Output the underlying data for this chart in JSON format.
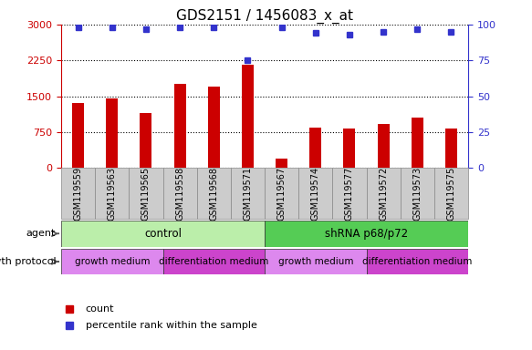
{
  "title": "GDS2151 / 1456083_x_at",
  "samples": [
    "GSM119559",
    "GSM119563",
    "GSM119565",
    "GSM119558",
    "GSM119568",
    "GSM119571",
    "GSM119567",
    "GSM119574",
    "GSM119577",
    "GSM119572",
    "GSM119573",
    "GSM119575"
  ],
  "counts": [
    1350,
    1450,
    1150,
    1750,
    1700,
    2150,
    200,
    850,
    820,
    930,
    1050,
    820
  ],
  "percentiles": [
    98,
    98,
    97,
    98,
    98,
    75,
    98,
    94,
    93,
    95,
    97,
    95
  ],
  "bar_color": "#cc0000",
  "dot_color": "#3333cc",
  "ylim_left": [
    0,
    3000
  ],
  "ylim_right": [
    0,
    100
  ],
  "yticks_left": [
    0,
    750,
    1500,
    2250,
    3000
  ],
  "yticks_right": [
    0,
    25,
    50,
    75,
    100
  ],
  "agent_groups": [
    {
      "label": "control",
      "start": 0,
      "end": 6,
      "color": "#bbeeaa"
    },
    {
      "label": "shRNA p68/p72",
      "start": 6,
      "end": 12,
      "color": "#55cc55"
    }
  ],
  "growth_groups": [
    {
      "label": "growth medium",
      "start": 0,
      "end": 3,
      "color": "#dd88ee"
    },
    {
      "label": "differentiation medium",
      "start": 3,
      "end": 6,
      "color": "#cc44cc"
    },
    {
      "label": "growth medium",
      "start": 6,
      "end": 9,
      "color": "#dd88ee"
    },
    {
      "label": "differentiation medium",
      "start": 9,
      "end": 12,
      "color": "#cc44cc"
    }
  ],
  "legend_count_color": "#cc0000",
  "legend_pct_color": "#3333cc",
  "left_axis_color": "#cc0000",
  "right_axis_color": "#3333cc",
  "plot_bg_color": "#ffffff",
  "xtick_bg_color": "#cccccc",
  "bar_width": 0.35
}
